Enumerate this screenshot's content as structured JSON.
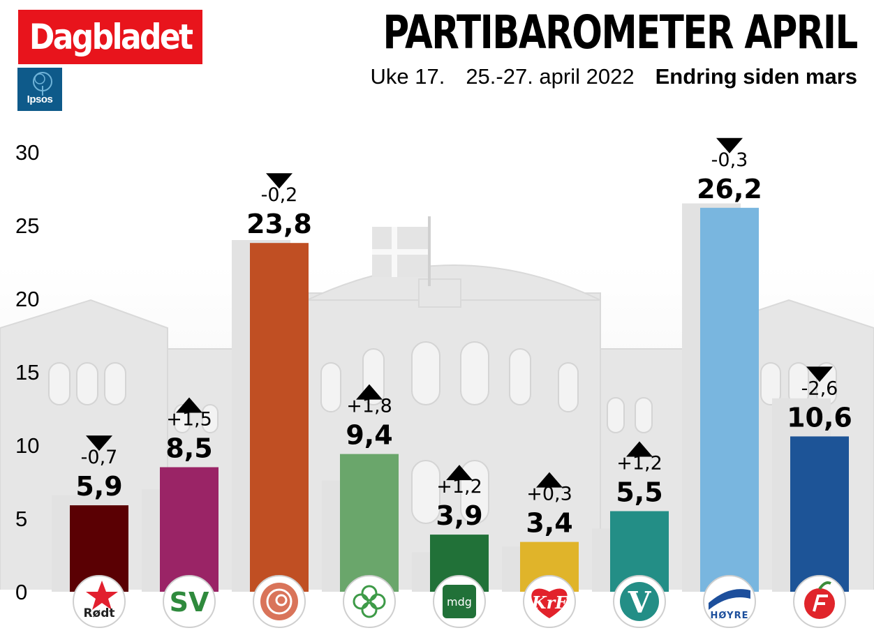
{
  "brand": {
    "logo_text": "Dagbladet",
    "pollster_text": "Ipsos",
    "logo_color": "#e8141c",
    "pollster_color": "#0e5a8a"
  },
  "header": {
    "title": "PARTIBAROMETER APRIL",
    "week": "Uke 17.",
    "dates": "25.-27. april 2022",
    "change_label": "Endring siden mars"
  },
  "chart_data": {
    "type": "bar",
    "title": "PARTIBAROMETER APRIL",
    "subtitle": "Uke 17.    25.-27. april 2022",
    "legend_note": "Endring siden mars",
    "ylim": [
      0,
      30
    ],
    "yticks": [
      0,
      5,
      10,
      15,
      20,
      25,
      30
    ],
    "grid": false,
    "categories": [
      "Rødt",
      "SV",
      "Ap",
      "Sp",
      "MDG",
      "KrF",
      "V",
      "Høyre",
      "FrP"
    ],
    "values": [
      5.9,
      8.5,
      23.8,
      9.4,
      3.9,
      3.4,
      5.5,
      26.2,
      10.6
    ],
    "value_labels": [
      "5,9",
      "8,5",
      "23,8",
      "9,4",
      "3,9",
      "3,4",
      "5,5",
      "26,2",
      "10,6"
    ],
    "previous_values": [
      6.6,
      7.0,
      24.0,
      7.6,
      2.7,
      3.1,
      4.3,
      26.5,
      13.2
    ],
    "changes": [
      "-0,7",
      "+1,5",
      "-0,2",
      "+1,8",
      "+1,2",
      "+0,3",
      "+1,2",
      "-0,3",
      "-2,6"
    ],
    "directions": [
      "down",
      "up",
      "down",
      "up",
      "up",
      "up",
      "up",
      "down",
      "down"
    ],
    "colors": [
      "#5a0003",
      "#9a2466",
      "#c04f23",
      "#6aa66b",
      "#217138",
      "#e0b42a",
      "#238e86",
      "#79b6df",
      "#1d5497"
    ],
    "logo_labels": [
      "Rødt",
      "SV",
      "",
      "",
      "mdg",
      "KrF",
      "V",
      "HØYRE",
      ""
    ],
    "logo_icons": [
      "star-icon",
      "sv-wordmark",
      "rose-icon",
      "clover-icon",
      "mdg-wordmark",
      "krf-wordmark",
      "v-wordmark",
      "flag-icon",
      "apple-icon"
    ]
  }
}
